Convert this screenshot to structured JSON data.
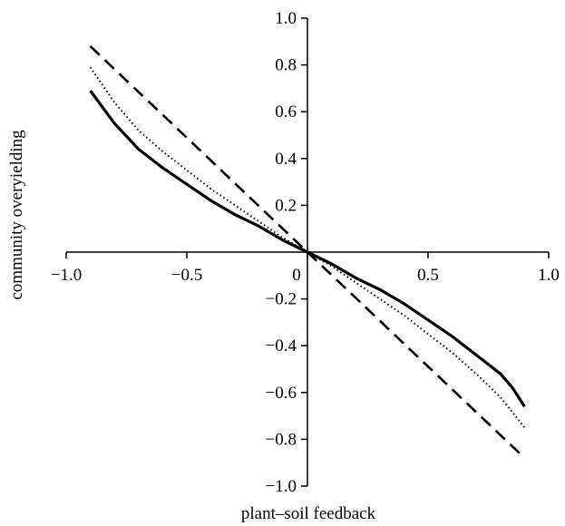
{
  "chart_data": {
    "type": "line",
    "title": "",
    "xlabel": "plant–soil feedback",
    "ylabel": "community overyielding",
    "xlim": [
      -1.0,
      1.0
    ],
    "ylim": [
      -1.0,
      1.0
    ],
    "x_ticks": [
      -1.0,
      -0.5,
      0,
      0.5,
      1.0
    ],
    "x_tick_labels": [
      "−1.0",
      "−0.5",
      "0",
      "0.5",
      "1.0"
    ],
    "y_ticks": [
      -1.0,
      -0.8,
      -0.6,
      -0.4,
      -0.2,
      0.2,
      0.4,
      0.6,
      0.8,
      1.0
    ],
    "y_tick_labels": [
      "−1.0",
      "−0.8",
      "−0.6",
      "−0.4",
      "−0.2",
      "0.2",
      "0.4",
      "0.6",
      "0.8",
      "1.0"
    ],
    "grid": false,
    "legend": "none",
    "series": [
      {
        "style": "solid",
        "x": [
          -0.9,
          -0.8,
          -0.7,
          -0.6,
          -0.5,
          -0.4,
          -0.3,
          -0.2,
          -0.1,
          0,
          0.1,
          0.2,
          0.3,
          0.4,
          0.5,
          0.6,
          0.7,
          0.8,
          0.85,
          0.9
        ],
        "y": [
          0.69,
          0.55,
          0.44,
          0.36,
          0.29,
          0.22,
          0.16,
          0.11,
          0.05,
          0,
          -0.05,
          -0.11,
          -0.16,
          -0.22,
          -0.29,
          -0.36,
          -0.44,
          -0.52,
          -0.58,
          -0.66
        ]
      },
      {
        "style": "dotted",
        "x": [
          -0.9,
          -0.8,
          -0.7,
          -0.6,
          -0.5,
          -0.4,
          -0.3,
          -0.2,
          -0.1,
          0,
          0.1,
          0.2,
          0.3,
          0.4,
          0.5,
          0.6,
          0.7,
          0.8,
          0.9
        ],
        "y": [
          0.79,
          0.64,
          0.52,
          0.43,
          0.35,
          0.27,
          0.2,
          0.13,
          0.06,
          0,
          -0.06,
          -0.13,
          -0.2,
          -0.27,
          -0.35,
          -0.43,
          -0.52,
          -0.62,
          -0.75
        ]
      },
      {
        "style": "dashed",
        "x": [
          -0.9,
          0.9
        ],
        "y": [
          0.88,
          -0.88
        ]
      }
    ]
  }
}
